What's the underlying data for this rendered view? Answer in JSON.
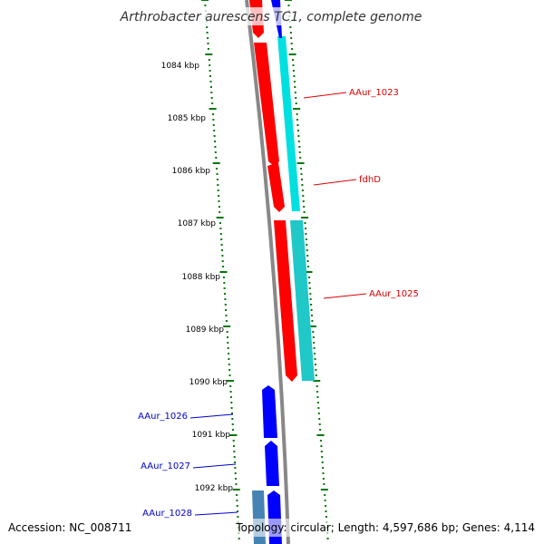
{
  "title": "Arthrobacter aurescens TC1, complete genome",
  "accession": "Accession: NC_008711",
  "summary": "Topology: circular; Length: 4,597,686 bp; Genes: 4,114",
  "ruler": {
    "labels": [
      "1084 kbp",
      "1085 kbp",
      "1086 kbp",
      "1087 kbp",
      "1088 kbp",
      "1089 kbp",
      "1090 kbp",
      "1091 kbp",
      "1092 kbp"
    ],
    "tick_color": "#007700"
  },
  "colors": {
    "backbone": "#888888",
    "cds_reverse": "#ff0000",
    "cds_forward": "#0000ff",
    "gene_cyan": "#00e0e0",
    "gene_steel": "#4682b4",
    "label_red": "#dd0000",
    "label_blue": "#0000cc"
  },
  "gene_labels": {
    "aaur_1023": "AAur_1023",
    "fdhd": "fdhD",
    "aaur_1025": "AAur_1025",
    "aaur_1026": "AAur_1026",
    "aaur_1027": "AAur_1027",
    "aaur_1028": "AAur_1028"
  }
}
